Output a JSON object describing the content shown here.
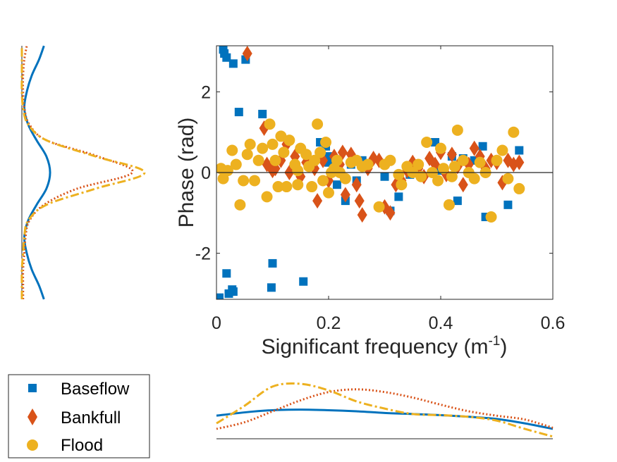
{
  "chart_data": {
    "type": "scatter",
    "xlabel": "Significant frequency (m",
    "xlabel_sup": "-1",
    "xlabel_end": ")",
    "ylabel": "Phase (rad)",
    "xlim": [
      0,
      0.6
    ],
    "ylim": [
      -3.14159,
      3.14159
    ],
    "xticks": [
      0,
      0.2,
      0.4,
      0.6
    ],
    "xtick_labels": [
      "0",
      "0.2",
      "0.4",
      "0.6"
    ],
    "yticks": [
      -2,
      0,
      2
    ],
    "ytick_labels": [
      "-2",
      "0",
      "2"
    ],
    "grid": false,
    "legend_position": "bottom-left",
    "colors": {
      "Baseflow": "#0072BD",
      "Bankfull": "#D95319",
      "Flood": "#EDB120"
    },
    "series": [
      {
        "name": "Baseflow",
        "marker": "square",
        "x": [
          0.012,
          0.014,
          0.018,
          0.03,
          0.04,
          0.052,
          0.082,
          0.005,
          0.018,
          0.03,
          0.028,
          0.022,
          0.1,
          0.098,
          0.155,
          0.185,
          0.195,
          0.2,
          0.215,
          0.23,
          0.24,
          0.25,
          0.26,
          0.31,
          0.325,
          0.345,
          0.355,
          0.39,
          0.4,
          0.42,
          0.43,
          0.475,
          0.48,
          0.52,
          0.54,
          0.44,
          0.46,
          0.35,
          0.3,
          0.2
        ],
        "y": [
          3.05,
          2.95,
          2.85,
          2.7,
          1.5,
          2.8,
          1.45,
          -3.1,
          -2.5,
          -2.95,
          -2.9,
          -3.0,
          -2.25,
          -2.85,
          -2.7,
          0.75,
          0.65,
          0.4,
          -0.3,
          -0.7,
          0.2,
          -0.2,
          0.3,
          -0.95,
          -0.6,
          -0.05,
          0.0,
          0.75,
          0.05,
          0.4,
          -0.7,
          0.65,
          -1.1,
          -0.8,
          0.55,
          0.35,
          0.3,
          0.1,
          -0.1,
          0.25
        ]
      },
      {
        "name": "Bankfull",
        "marker": "diamond",
        "x": [
          0.055,
          0.085,
          0.09,
          0.1,
          0.105,
          0.115,
          0.125,
          0.13,
          0.14,
          0.15,
          0.16,
          0.175,
          0.18,
          0.19,
          0.2,
          0.21,
          0.22,
          0.225,
          0.23,
          0.24,
          0.25,
          0.255,
          0.26,
          0.27,
          0.28,
          0.29,
          0.3,
          0.31,
          0.32,
          0.33,
          0.34,
          0.35,
          0.36,
          0.37,
          0.38,
          0.39,
          0.4,
          0.41,
          0.42,
          0.43,
          0.44,
          0.45,
          0.46,
          0.47,
          0.48,
          0.49,
          0.5,
          0.51,
          0.52,
          0.53,
          0.54
        ],
        "y": [
          2.95,
          1.1,
          0.2,
          0.05,
          0.1,
          0.3,
          0.7,
          0.0,
          0.4,
          -0.1,
          0.25,
          0.1,
          -0.7,
          0.3,
          -0.2,
          0.4,
          0.2,
          0.5,
          -0.55,
          0.45,
          -0.3,
          -0.7,
          -1.05,
          0.1,
          0.35,
          0.3,
          -0.85,
          -1.0,
          -0.3,
          -0.2,
          0.05,
          0.25,
          0.1,
          -0.1,
          0.35,
          0.2,
          0.5,
          -0.05,
          0.45,
          0.15,
          -0.3,
          0.2,
          0.6,
          0.4,
          0.1,
          0.3,
          0.25,
          -0.25,
          0.3,
          0.2,
          0.25
        ]
      },
      {
        "name": "Flood",
        "marker": "circle",
        "x": [
          0.008,
          0.012,
          0.02,
          0.028,
          0.035,
          0.042,
          0.048,
          0.055,
          0.06,
          0.068,
          0.075,
          0.082,
          0.09,
          0.095,
          0.1,
          0.105,
          0.11,
          0.115,
          0.12,
          0.125,
          0.13,
          0.14,
          0.145,
          0.15,
          0.16,
          0.165,
          0.17,
          0.175,
          0.18,
          0.185,
          0.19,
          0.195,
          0.2,
          0.21,
          0.215,
          0.22,
          0.23,
          0.24,
          0.25,
          0.26,
          0.27,
          0.29,
          0.3,
          0.31,
          0.325,
          0.33,
          0.34,
          0.35,
          0.36,
          0.365,
          0.375,
          0.385,
          0.395,
          0.4,
          0.405,
          0.415,
          0.42,
          0.425,
          0.43,
          0.44,
          0.45,
          0.46,
          0.47,
          0.48,
          0.49,
          0.5,
          0.51,
          0.52,
          0.53,
          0.54,
          0.145,
          0.205
        ],
        "y": [
          0.1,
          -0.15,
          0.05,
          0.55,
          0.2,
          -0.8,
          -0.2,
          0.45,
          0.7,
          -0.2,
          0.3,
          0.6,
          -0.6,
          1.2,
          0.7,
          0.3,
          -0.35,
          0.9,
          0.5,
          -0.35,
          0.8,
          0.2,
          0.05,
          0.6,
          0.45,
          0.15,
          -0.35,
          0.3,
          1.2,
          0.5,
          -0.2,
          0.75,
          -0.5,
          0.1,
          0.3,
          0.0,
          -0.15,
          0.25,
          0.3,
          0.15,
          0.2,
          -0.85,
          0.2,
          0.3,
          -0.05,
          -0.3,
          0.15,
          0.0,
          0.2,
          -0.1,
          0.75,
          0.0,
          -0.2,
          0.6,
          0.1,
          -0.8,
          -0.1,
          0.15,
          1.05,
          0.3,
          0.0,
          -0.15,
          0.25,
          0.0,
          -1.1,
          0.3,
          0.55,
          -0.15,
          1.0,
          -0.4,
          -0.3,
          0.0
        ]
      }
    ],
    "marginal_y_density": [
      {
        "name": "Baseflow",
        "style": "solid",
        "phase": [
          -3.14,
          -2.8,
          -2.4,
          -2.0,
          -1.6,
          -1.2,
          -0.8,
          -0.4,
          0.0,
          0.4,
          0.8,
          1.2,
          1.6,
          2.0,
          2.4,
          2.8,
          3.14
        ],
        "density": [
          0.18,
          0.14,
          0.08,
          0.04,
          0.02,
          0.05,
          0.12,
          0.2,
          0.23,
          0.2,
          0.12,
          0.05,
          0.02,
          0.04,
          0.08,
          0.14,
          0.18
        ]
      },
      {
        "name": "Bankfull",
        "style": "dotted",
        "phase": [
          -3.14,
          -2.8,
          -2.4,
          -2.0,
          -1.6,
          -1.2,
          -0.8,
          -0.4,
          0.0,
          0.4,
          0.8,
          1.2,
          1.6,
          2.0,
          2.4,
          2.8,
          3.14
        ],
        "density": [
          0.01,
          0.01,
          0.01,
          0.02,
          0.03,
          0.06,
          0.18,
          0.45,
          0.9,
          0.62,
          0.2,
          0.06,
          0.02,
          0.01,
          0.01,
          0.02,
          0.04
        ]
      },
      {
        "name": "Flood",
        "style": "dashdot",
        "phase": [
          -3.14,
          -2.8,
          -2.4,
          -2.0,
          -1.6,
          -1.2,
          -0.8,
          -0.4,
          0.0,
          0.4,
          0.8,
          1.2,
          1.6,
          2.0,
          2.4,
          2.8,
          3.14
        ],
        "density": [
          0.0,
          0.0,
          0.0,
          0.01,
          0.02,
          0.05,
          0.2,
          0.6,
          1.0,
          0.6,
          0.2,
          0.05,
          0.01,
          0.0,
          0.0,
          0.0,
          0.0
        ]
      }
    ],
    "marginal_x_density": [
      {
        "name": "Baseflow",
        "style": "solid",
        "freq": [
          0,
          0.05,
          0.1,
          0.15,
          0.2,
          0.25,
          0.3,
          0.35,
          0.4,
          0.45,
          0.5,
          0.55,
          0.6
        ],
        "density": [
          0.42,
          0.48,
          0.52,
          0.53,
          0.52,
          0.5,
          0.47,
          0.45,
          0.43,
          0.4,
          0.36,
          0.28,
          0.18
        ]
      },
      {
        "name": "Bankfull",
        "style": "dotted",
        "freq": [
          0,
          0.05,
          0.1,
          0.15,
          0.2,
          0.25,
          0.3,
          0.35,
          0.4,
          0.45,
          0.5,
          0.55,
          0.6
        ],
        "density": [
          0.18,
          0.3,
          0.5,
          0.7,
          0.85,
          0.9,
          0.85,
          0.75,
          0.62,
          0.5,
          0.42,
          0.35,
          0.2
        ]
      },
      {
        "name": "Flood",
        "style": "dashdot",
        "freq": [
          0,
          0.05,
          0.1,
          0.15,
          0.2,
          0.25,
          0.3,
          0.35,
          0.4,
          0.45,
          0.5,
          0.55,
          0.6
        ],
        "density": [
          0.28,
          0.6,
          0.95,
          1.0,
          0.88,
          0.68,
          0.55,
          0.45,
          0.43,
          0.4,
          0.33,
          0.18,
          0.04
        ]
      }
    ],
    "legend": [
      {
        "label": "Baseflow",
        "marker": "square"
      },
      {
        "label": "Bankfull",
        "marker": "diamond"
      },
      {
        "label": "Flood",
        "marker": "circle"
      }
    ]
  }
}
